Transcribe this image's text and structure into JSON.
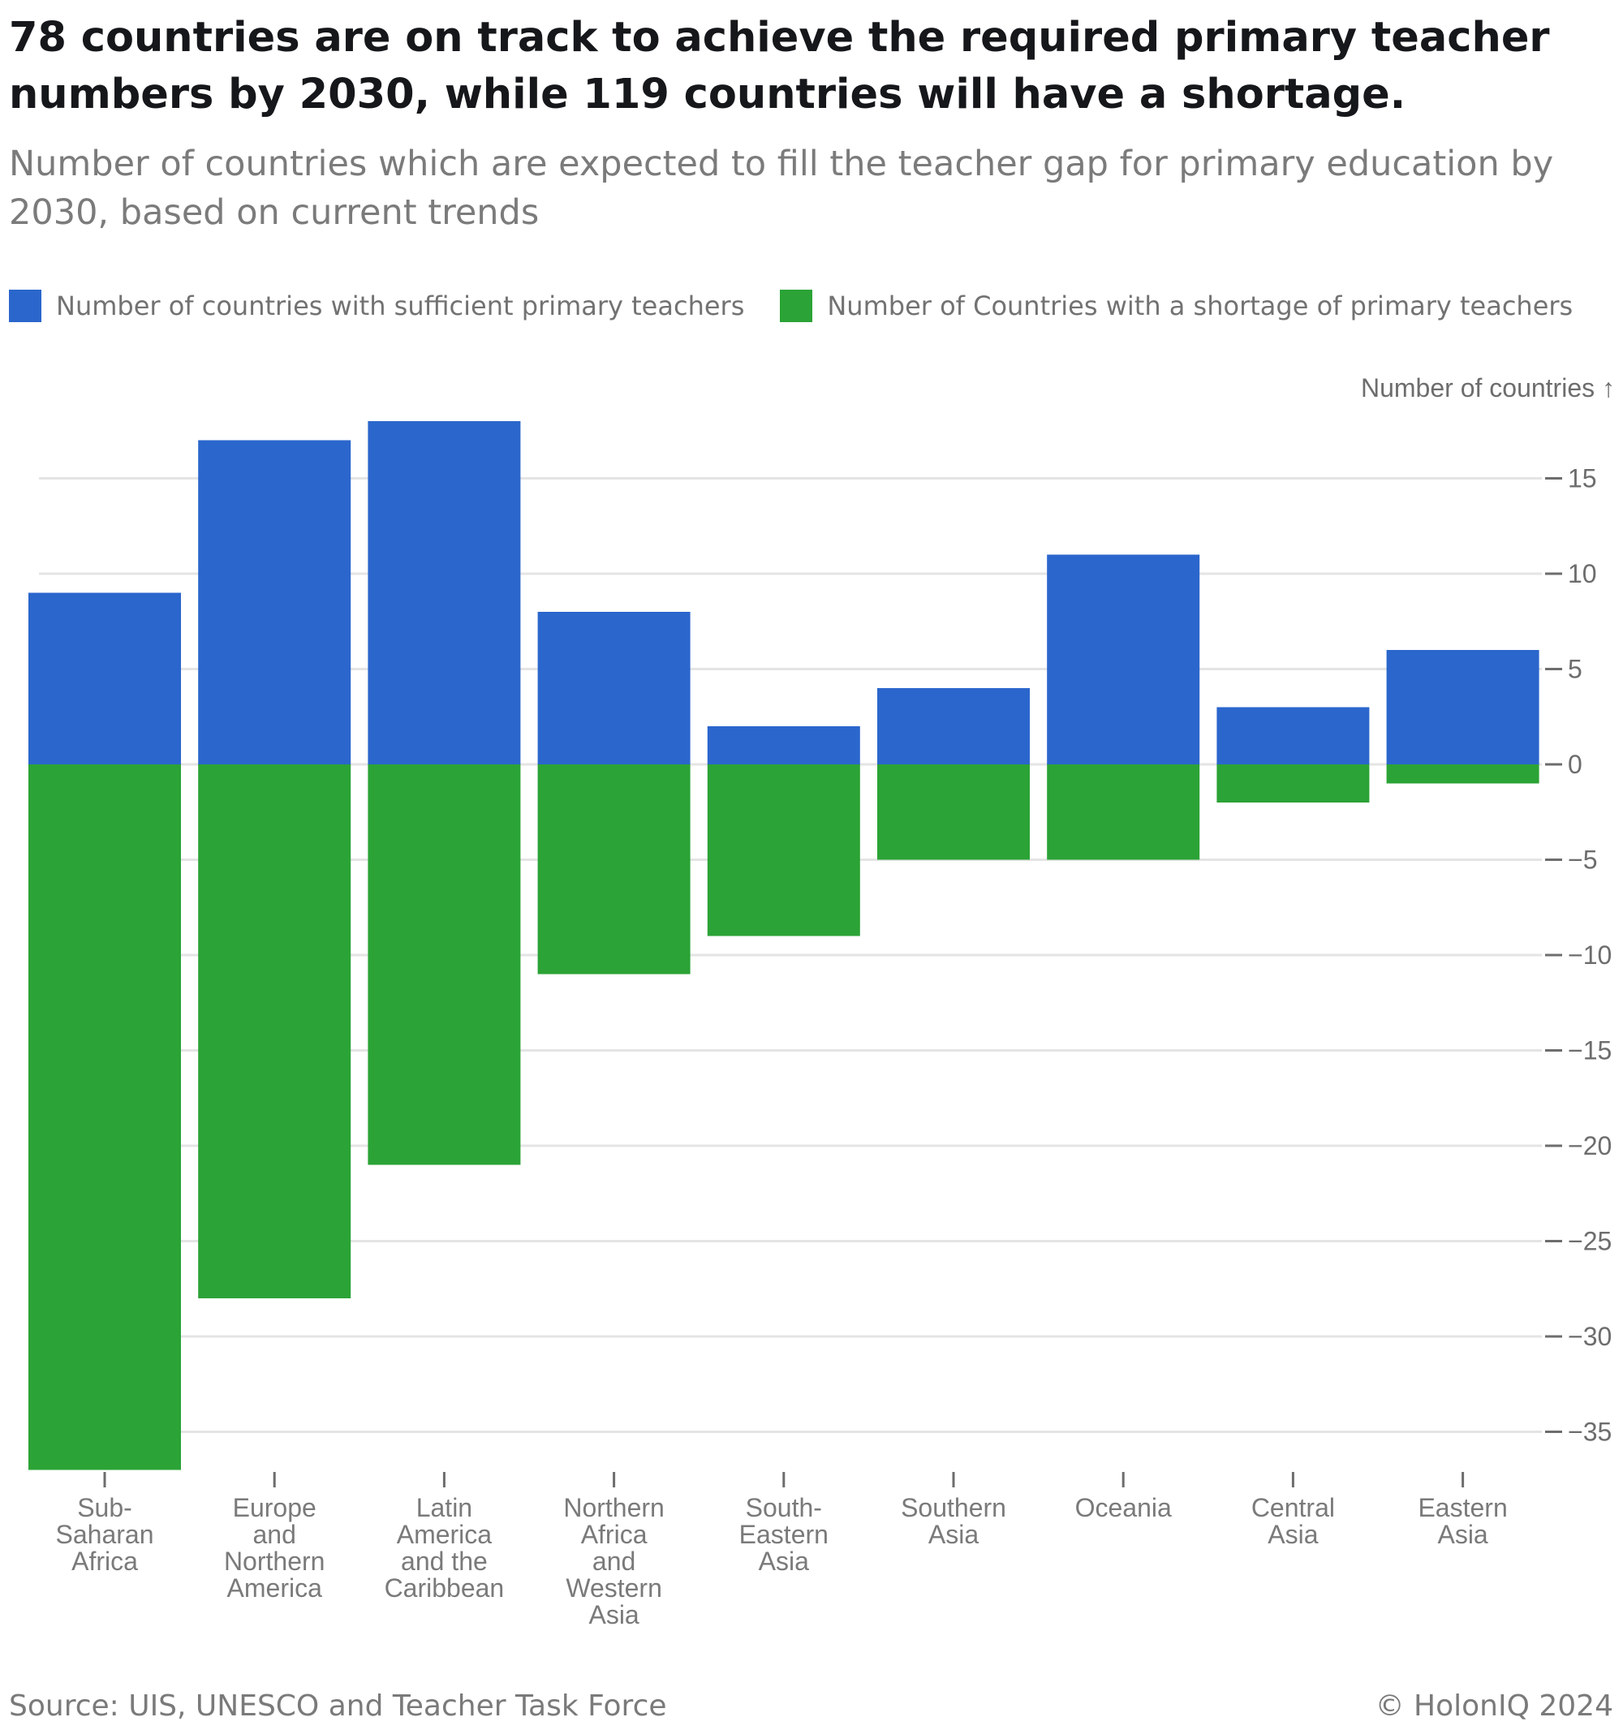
{
  "chart_data": {
    "type": "bar",
    "title": "78 countries are on track to achieve the required primary teacher numbers by 2030, while 119 countries will have a shortage.",
    "subtitle": "Number of countries which are expected to fill the teacher gap for primary education by 2030, based on current trends",
    "ylabel": "Number of countries ↑",
    "xlabel": "",
    "ylim": [
      -37,
      18
    ],
    "yticks": [
      15,
      10,
      5,
      0,
      -5,
      -10,
      -15,
      -20,
      -25,
      -30,
      -35
    ],
    "grid": true,
    "stacked": true,
    "legend_position": "top-left",
    "categories": [
      [
        "Sub-",
        "Saharan",
        "Africa"
      ],
      [
        "Europe",
        "and",
        "Northern",
        "America"
      ],
      [
        "Latin",
        "America",
        "and the",
        "Caribbean"
      ],
      [
        "Northern",
        "Africa",
        "and",
        "Western",
        "Asia"
      ],
      [
        "South-",
        "Eastern",
        "Asia"
      ],
      [
        "Southern",
        "Asia"
      ],
      [
        "Oceania"
      ],
      [
        "Central",
        "Asia"
      ],
      [
        "Eastern",
        "Asia"
      ]
    ],
    "series": [
      {
        "name": "Number of countries with sufficient primary teachers",
        "color": "#2b66cc",
        "values": [
          9,
          17,
          18,
          8,
          2,
          4,
          11,
          3,
          6
        ]
      },
      {
        "name": "Number of Countries with a shortage of primary teachers",
        "color": "#2ba336",
        "values": [
          -37,
          -28,
          -21,
          -11,
          -9,
          -5,
          -5,
          -2,
          -1
        ]
      }
    ]
  },
  "footer": {
    "source": "Source: UIS, UNESCO and Teacher Task Force",
    "credit": "© HolonIQ 2024"
  }
}
